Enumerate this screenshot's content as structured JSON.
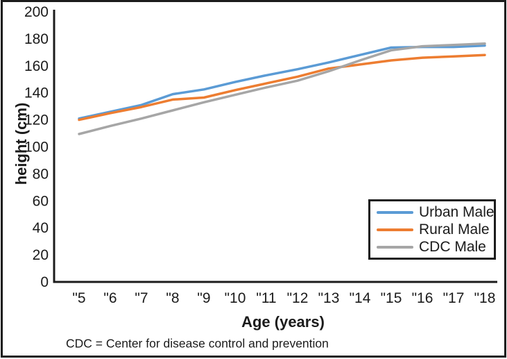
{
  "figure": {
    "footnote": "CDC = Center for disease control and prevention"
  },
  "chart_data": {
    "type": "line",
    "title": "",
    "xlabel": "Age (years)",
    "ylabel": "height (cm)",
    "categories": [
      "\"5",
      "\"6",
      "\"7",
      "\"8",
      "\"9",
      "\"10",
      "\"11",
      "\"12",
      "\"13",
      "\"14",
      "\"15",
      "\"16",
      "\"17",
      "\"18"
    ],
    "x_values": [
      5,
      6,
      7,
      8,
      9,
      10,
      11,
      12,
      13,
      14,
      15,
      16,
      17,
      18
    ],
    "y_ticks": [
      0,
      20,
      40,
      60,
      80,
      100,
      120,
      140,
      160,
      180,
      200
    ],
    "ylim": [
      0,
      200
    ],
    "grid": false,
    "legend_position": "inside-right",
    "axis_color": "#1c1c1c",
    "series": [
      {
        "name": "Urban Male",
        "color": "#5B9BD5",
        "values": [
          121,
          126,
          131,
          139,
          142.5,
          148,
          153,
          157.5,
          162.5,
          168,
          173.5,
          174,
          174,
          175
        ]
      },
      {
        "name": "Rural Male",
        "color": "#ED7D31",
        "values": [
          120,
          125,
          129.5,
          135,
          136.5,
          142,
          147,
          152,
          158,
          161,
          164,
          166,
          167,
          168
        ]
      },
      {
        "name": "CDC Male",
        "color": "#A6A6A6",
        "values": [
          109.5,
          115.5,
          121,
          127,
          133,
          138.5,
          144,
          149,
          156,
          164,
          171.5,
          174.5,
          175.5,
          176.5
        ]
      }
    ]
  }
}
